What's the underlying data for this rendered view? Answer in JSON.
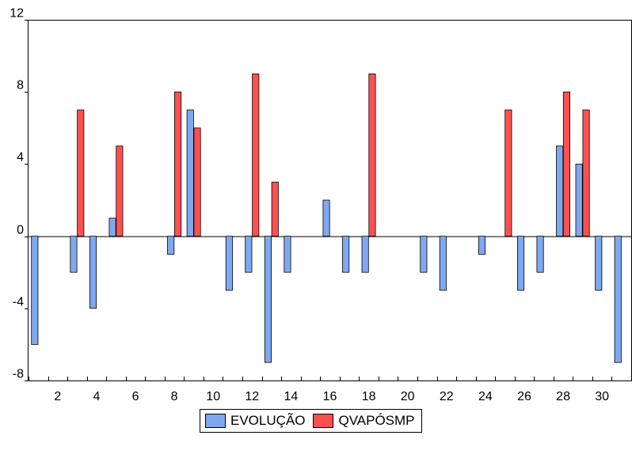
{
  "chart_data": {
    "type": "bar",
    "title": "",
    "xlabel": "",
    "ylabel": "",
    "x": [
      1,
      2,
      3,
      4,
      5,
      6,
      7,
      8,
      9,
      10,
      11,
      12,
      13,
      14,
      15,
      16,
      17,
      18,
      19,
      20,
      21,
      22,
      23,
      24,
      25,
      26,
      27,
      28,
      29,
      30,
      31
    ],
    "x_tick_labels": [
      "2",
      "4",
      "6",
      "8",
      "10",
      "12",
      "14",
      "16",
      "18",
      "20",
      "22",
      "24",
      "26",
      "28",
      "30"
    ],
    "y_tick_labels": [
      "-8",
      "-4",
      "0",
      "4",
      "8",
      "12"
    ],
    "ylim": [
      -8,
      12
    ],
    "grid": false,
    "legend_position": "bottom",
    "series": [
      {
        "name": "EVOLUÇÃO",
        "color": "#7fa8f0",
        "values": [
          -6,
          0,
          -2,
          -4,
          1,
          0,
          0,
          -1,
          7,
          0,
          -3,
          -2,
          -7,
          -2,
          0,
          2,
          -2,
          -2,
          0,
          0,
          -2,
          -3,
          0,
          -1,
          0,
          -3,
          -2,
          5,
          4,
          -3,
          -7
        ]
      },
      {
        "name": "QVAPÓSMP",
        "color": "#ff5050",
        "values": [
          0,
          0,
          7,
          0,
          5,
          0,
          0,
          8,
          6,
          0,
          0,
          9,
          3,
          0,
          0,
          0,
          0,
          9,
          0,
          0,
          0,
          0,
          0,
          0,
          7,
          0,
          0,
          8,
          7,
          0,
          0
        ]
      }
    ]
  }
}
